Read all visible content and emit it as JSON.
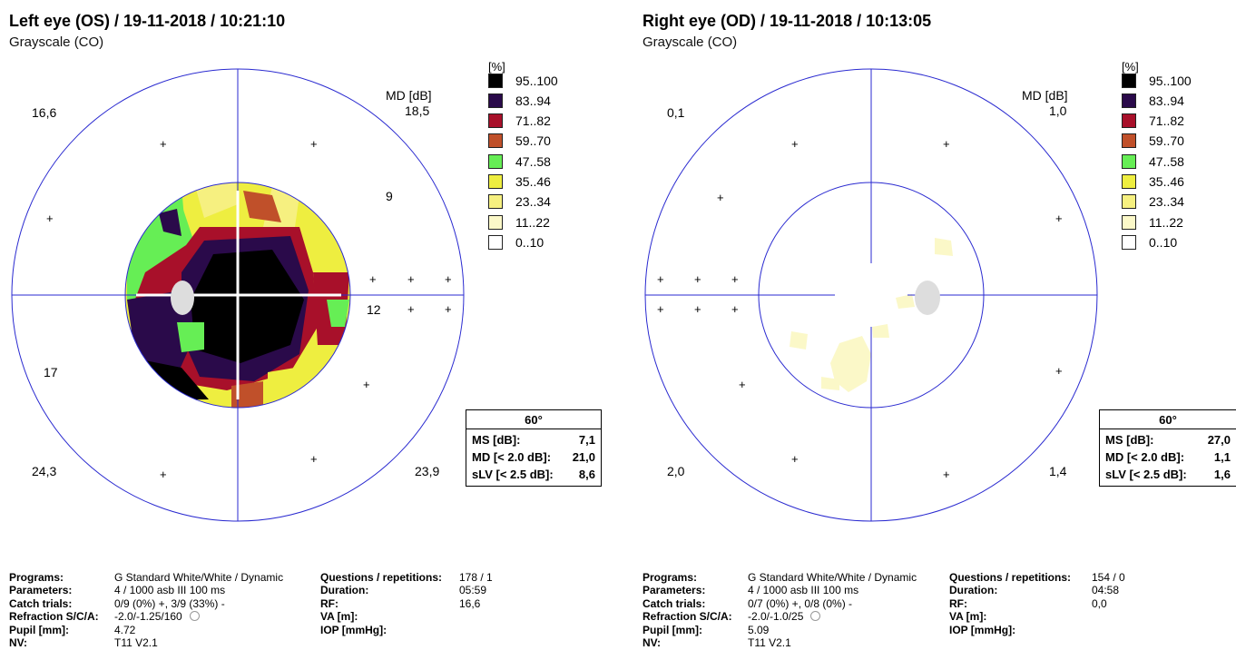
{
  "left": {
    "title": "Left eye (OS) / 19-11-2018 / 10:21:10",
    "subtitle": "Grayscale (CO)",
    "md_label": "MD [dB]",
    "quadrant_values": {
      "upper_left": "16,6",
      "upper_right": "18,5",
      "mid_right_1": "9",
      "mid_right_2": "12",
      "lower_left_1": "17",
      "lower_left_2": "24,3",
      "lower_right": "23,9"
    },
    "stats": {
      "header": "60°",
      "ms_label": "MS [dB]:",
      "ms_value": "7,1",
      "md_label": "MD [< 2.0 dB]:",
      "md_value": "21,0",
      "slv_label": "sLV [< 2.5 dB]:",
      "slv_value": "8,6"
    },
    "info": {
      "programs_label": "Programs:",
      "programs_value": "G Standard   White/White / Dynamic",
      "parameters_label": "Parameters:",
      "parameters_value": "4  / 1000 asb III 100 ms",
      "catch_label": "Catch trials:",
      "catch_value": "0/9 (0%) +, 3/9 (33%) -",
      "refraction_label": "Refraction S/C/A:",
      "refraction_value": "-2.0/-1.25/160",
      "pupil_label": "Pupil [mm]:",
      "pupil_value": "4.72",
      "nv_label": "NV:",
      "nv_value": "T11 V2.1",
      "questions_label": "Questions / repetitions:",
      "questions_value": "178 / 1",
      "duration_label": "Duration:",
      "duration_value": "05:59",
      "rf_label": "RF:",
      "rf_value": "16,6",
      "va_label": "VA [m]:",
      "iop_label": "IOP [mmHg]:"
    }
  },
  "right": {
    "title": "Right eye (OD) / 19-11-2018 / 10:13:05",
    "subtitle": "Grayscale (CO)",
    "md_label": "MD [dB]",
    "quadrant_values": {
      "upper_left": "0,1",
      "upper_right": "1,0",
      "lower_left": "2,0",
      "lower_right": "1,4"
    },
    "stats": {
      "header": "60°",
      "ms_label": "MS [dB]:",
      "ms_value": "27,0",
      "md_label": "MD [< 2.0 dB]:",
      "md_value": "1,1",
      "slv_label": "sLV [< 2.5 dB]:",
      "slv_value": "1,6"
    },
    "info": {
      "programs_label": "Programs:",
      "programs_value": "G Standard   White/White / Dynamic",
      "parameters_label": "Parameters:",
      "parameters_value": "4  / 1000 asb III 100 ms",
      "catch_label": "Catch trials:",
      "catch_value": "0/7 (0%) +, 0/8 (0%) -",
      "refraction_label": "Refraction S/C/A:",
      "refraction_value": "-2.0/-1.0/25",
      "pupil_label": "Pupil [mm]:",
      "pupil_value": "5.09",
      "nv_label": "NV:",
      "nv_value": "T11 V2.1",
      "questions_label": "Questions / repetitions:",
      "questions_value": "154 / 0",
      "duration_label": "Duration:",
      "duration_value": "04:58",
      "rf_label": "RF:",
      "rf_value": "0,0",
      "va_label": "VA [m]:",
      "iop_label": "IOP [mmHg]:"
    }
  },
  "legend": {
    "unit": "[%]",
    "items": [
      {
        "label": "95..100",
        "color": "#000000"
      },
      {
        "label": "83..94",
        "color": "#2a0a4a"
      },
      {
        "label": "71..82",
        "color": "#a8102a"
      },
      {
        "label": "59..70",
        "color": "#c0502a"
      },
      {
        "label": "47..58",
        "color": "#66ee55"
      },
      {
        "label": "35..46",
        "color": "#eeee40"
      },
      {
        "label": "23..34",
        "color": "#f6f080"
      },
      {
        "label": "11..22",
        "color": "#fbf8c8"
      },
      {
        "label": "0..10",
        "color": "#ffffff"
      }
    ]
  },
  "colors": {
    "axis": "#2a2ad0",
    "blind_spot": "#dddddd"
  }
}
